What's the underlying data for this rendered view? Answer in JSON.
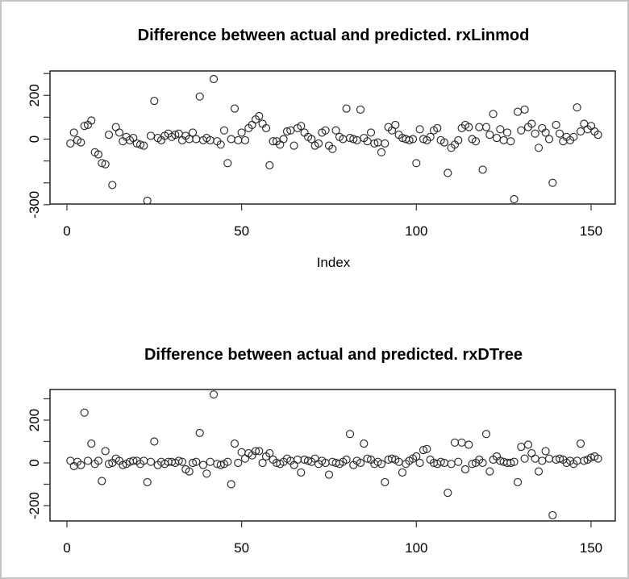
{
  "window": {
    "background": "#ffffff",
    "border_color": "#c4c4c4",
    "foreground": "#000000",
    "tick_color": "#404040"
  },
  "chart_data": [
    {
      "type": "scatter",
      "title": "Difference between actual and predicted. rxLinmod",
      "xlabel": "Index",
      "ylabel": "",
      "marker": "open-circle",
      "grid": false,
      "n_points": 152,
      "x_start_index": 1,
      "xlim": [
        -5,
        158
      ],
      "ylim": [
        -300,
        310
      ],
      "xticks": [
        0,
        50,
        100,
        150
      ],
      "yticks": [
        300,
        200,
        100,
        0,
        -100,
        -200,
        -300
      ],
      "ytick_labels_shown": [
        200,
        0,
        -300
      ],
      "values": [
        -20,
        30,
        -5,
        -15,
        60,
        65,
        85,
        -60,
        -70,
        -110,
        -115,
        20,
        -210,
        55,
        30,
        -10,
        10,
        -5,
        5,
        -20,
        -25,
        -30,
        -282,
        15,
        175,
        5,
        -5,
        15,
        25,
        10,
        20,
        25,
        -5,
        15,
        0,
        30,
        0,
        195,
        -5,
        5,
        -5,
        275,
        -10,
        -25,
        40,
        -110,
        0,
        140,
        -5,
        30,
        -5,
        50,
        65,
        90,
        105,
        70,
        50,
        -120,
        -10,
        -10,
        -25,
        0,
        35,
        40,
        -30,
        50,
        60,
        30,
        10,
        0,
        -30,
        -20,
        30,
        40,
        -30,
        -45,
        40,
        10,
        0,
        140,
        5,
        0,
        -5,
        135,
        5,
        -10,
        30,
        -20,
        -15,
        -60,
        -20,
        55,
        40,
        65,
        20,
        5,
        0,
        -5,
        0,
        -110,
        45,
        0,
        -5,
        10,
        40,
        50,
        -5,
        -15,
        -155,
        -40,
        -25,
        -5,
        50,
        65,
        55,
        0,
        -10,
        55,
        -140,
        55,
        20,
        115,
        5,
        45,
        -5,
        30,
        -10,
        -275,
        125,
        40,
        135,
        55,
        70,
        25,
        -40,
        50,
        30,
        0,
        -200,
        65,
        25,
        -10,
        10,
        -5,
        10,
        145,
        35,
        70,
        45,
        60,
        35,
        20
      ]
    },
    {
      "type": "scatter",
      "title": "Difference between actual and predicted. rxDTree",
      "xlabel": "",
      "ylabel": "",
      "marker": "open-circle",
      "grid": false,
      "n_points": 152,
      "x_start_index": 1,
      "xlim": [
        -5,
        158
      ],
      "ylim": [
        -270,
        345
      ],
      "xticks": [
        0,
        50,
        100,
        150
      ],
      "yticks": [
        300,
        200,
        100,
        0,
        -100,
        -200
      ],
      "ytick_labels_shown": [
        200,
        0,
        -200
      ],
      "values": [
        10,
        -15,
        5,
        -10,
        235,
        10,
        90,
        -5,
        10,
        -85,
        55,
        -5,
        0,
        20,
        10,
        -10,
        -5,
        5,
        10,
        10,
        -5,
        10,
        -90,
        5,
        100,
        -10,
        5,
        -5,
        5,
        5,
        0,
        10,
        5,
        -30,
        -40,
        0,
        5,
        140,
        -10,
        -50,
        5,
        320,
        -5,
        -10,
        -5,
        5,
        -100,
        90,
        0,
        50,
        20,
        45,
        35,
        55,
        55,
        0,
        30,
        45,
        15,
        0,
        -5,
        5,
        20,
        10,
        -10,
        15,
        -45,
        15,
        10,
        5,
        20,
        -5,
        10,
        0,
        -55,
        5,
        0,
        -5,
        5,
        15,
        135,
        -10,
        10,
        0,
        90,
        20,
        15,
        -5,
        5,
        -5,
        -90,
        15,
        20,
        15,
        5,
        -45,
        -5,
        10,
        20,
        30,
        0,
        60,
        65,
        15,
        0,
        -5,
        5,
        0,
        -140,
        -5,
        95,
        5,
        95,
        -30,
        85,
        -5,
        0,
        15,
        0,
        135,
        -40,
        15,
        30,
        10,
        5,
        0,
        0,
        5,
        -90,
        75,
        20,
        85,
        45,
        20,
        -40,
        10,
        55,
        20,
        -245,
        15,
        20,
        15,
        0,
        10,
        -5,
        10,
        90,
        10,
        15,
        25,
        30,
        20
      ]
    }
  ]
}
